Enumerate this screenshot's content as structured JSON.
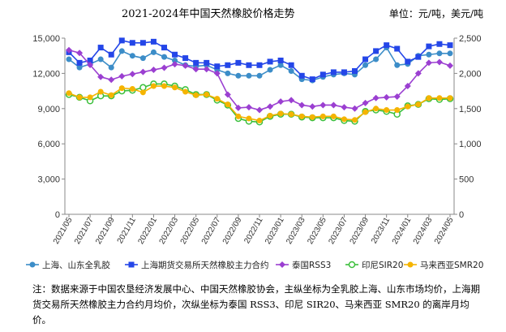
{
  "title": "2021-2024年中国天然橡胶价格走势",
  "unit": "单位：元/吨，美元/吨",
  "note": "注：数据来源于中国农垦经济发展中心、中国天然橡胶协会，主纵坐标为全乳胶上海、山东市场均价，上海期货交易所天然橡胶主力合约月均价，次纵坐标为泰国 RSS3、印尼 SIR20、马来西亚 SMR20 的离岸月均价。",
  "chart_data": {
    "type": "line",
    "x": [
      "2021/05",
      "2021/06",
      "2021/07",
      "2021/08",
      "2021/09",
      "2021/10",
      "2021/11",
      "2021/12",
      "2022/01",
      "2022/02",
      "2022/03",
      "2022/04",
      "2022/05",
      "2022/06",
      "2022/07",
      "2022/08",
      "2022/09",
      "2022/10",
      "2022/11",
      "2022/12",
      "2023/01",
      "2023/02",
      "2023/03",
      "2023/04",
      "2023/05",
      "2023/06",
      "2023/07",
      "2023/08",
      "2023/09",
      "2023/10",
      "2023/11",
      "2023/12",
      "2024/01",
      "2024/02",
      "2024/03",
      "2024/04",
      "2024/05"
    ],
    "x_tick_labels": [
      "2021/05",
      "2021/07",
      "2021/09",
      "2021/11",
      "2022/01",
      "2022/03",
      "2022/05",
      "2022/07",
      "2022/09",
      "2022/11",
      "2023/01",
      "2023/03",
      "2023/05",
      "2023/07",
      "2023/09",
      "2023/11",
      "2024/01",
      "2024/03",
      "2024/05"
    ],
    "y_left": {
      "min": 0,
      "max": 15000,
      "ticks": [
        "0",
        "3,000",
        "6,000",
        "9,000",
        "12,000",
        "15,000"
      ]
    },
    "y_right": {
      "min": 0,
      "max": 2500,
      "ticks": [
        "0",
        "500",
        "1,000",
        "1,500",
        "2,000",
        "2,500"
      ]
    },
    "grid": false,
    "legend_position": "bottom",
    "series": [
      {
        "name": "上海、山东全乳胶",
        "axis": "left",
        "color": "#3c8dc8",
        "marker": "circle",
        "values": [
          13200,
          12500,
          12800,
          13200,
          12500,
          13900,
          13500,
          13300,
          13800,
          13400,
          13100,
          12700,
          12600,
          12700,
          12300,
          12000,
          11800,
          11800,
          11800,
          12300,
          12700,
          12200,
          11500,
          11400,
          11700,
          11900,
          12000,
          11900,
          12700,
          13200,
          14200,
          12700,
          12800,
          13500,
          13600,
          13700,
          13700
        ]
      },
      {
        "name": "上海期货交易所天然橡胶主力合约",
        "axis": "left",
        "color": "#2446e8",
        "marker": "square",
        "values": [
          13800,
          12900,
          13100,
          14200,
          13600,
          14800,
          14600,
          14600,
          14700,
          14200,
          13600,
          13300,
          12900,
          12900,
          12600,
          12700,
          12900,
          12700,
          12700,
          13000,
          13100,
          12700,
          11800,
          11500,
          11900,
          12100,
          12100,
          12200,
          13200,
          13900,
          14400,
          14100,
          13000,
          13400,
          14300,
          14500,
          14400
        ]
      },
      {
        "name": "泰国RSS3",
        "axis": "right",
        "color": "#9b3fd1",
        "marker": "diamond",
        "values": [
          2330,
          2290,
          2120,
          1950,
          1910,
          1960,
          1990,
          2020,
          2050,
          2080,
          2130,
          2110,
          2060,
          2060,
          2000,
          1700,
          1510,
          1520,
          1480,
          1530,
          1600,
          1620,
          1550,
          1530,
          1550,
          1550,
          1520,
          1500,
          1580,
          1650,
          1660,
          1670,
          1820,
          2000,
          2150,
          2160,
          2110
        ]
      },
      {
        "name": "印尼SIR20",
        "axis": "right",
        "color": "#3bbf3b",
        "marker": "circle-open",
        "values": [
          1700,
          1660,
          1610,
          1680,
          1680,
          1750,
          1760,
          1800,
          1850,
          1850,
          1820,
          1770,
          1700,
          1700,
          1620,
          1550,
          1360,
          1320,
          1310,
          1390,
          1420,
          1420,
          1380,
          1370,
          1370,
          1370,
          1330,
          1320,
          1460,
          1480,
          1460,
          1420,
          1540,
          1560,
          1640,
          1630,
          1640
        ]
      },
      {
        "name": "马来西亚SMR20",
        "axis": "right",
        "color": "#f5b400",
        "marker": "circle",
        "values": [
          1720,
          1660,
          1660,
          1740,
          1690,
          1790,
          1780,
          1730,
          1820,
          1820,
          1800,
          1740,
          1690,
          1700,
          1640,
          1560,
          1390,
          1360,
          1330,
          1400,
          1430,
          1420,
          1390,
          1380,
          1390,
          1390,
          1350,
          1340,
          1450,
          1500,
          1480,
          1480,
          1530,
          1560,
          1650,
          1650,
          1650
        ]
      }
    ]
  }
}
